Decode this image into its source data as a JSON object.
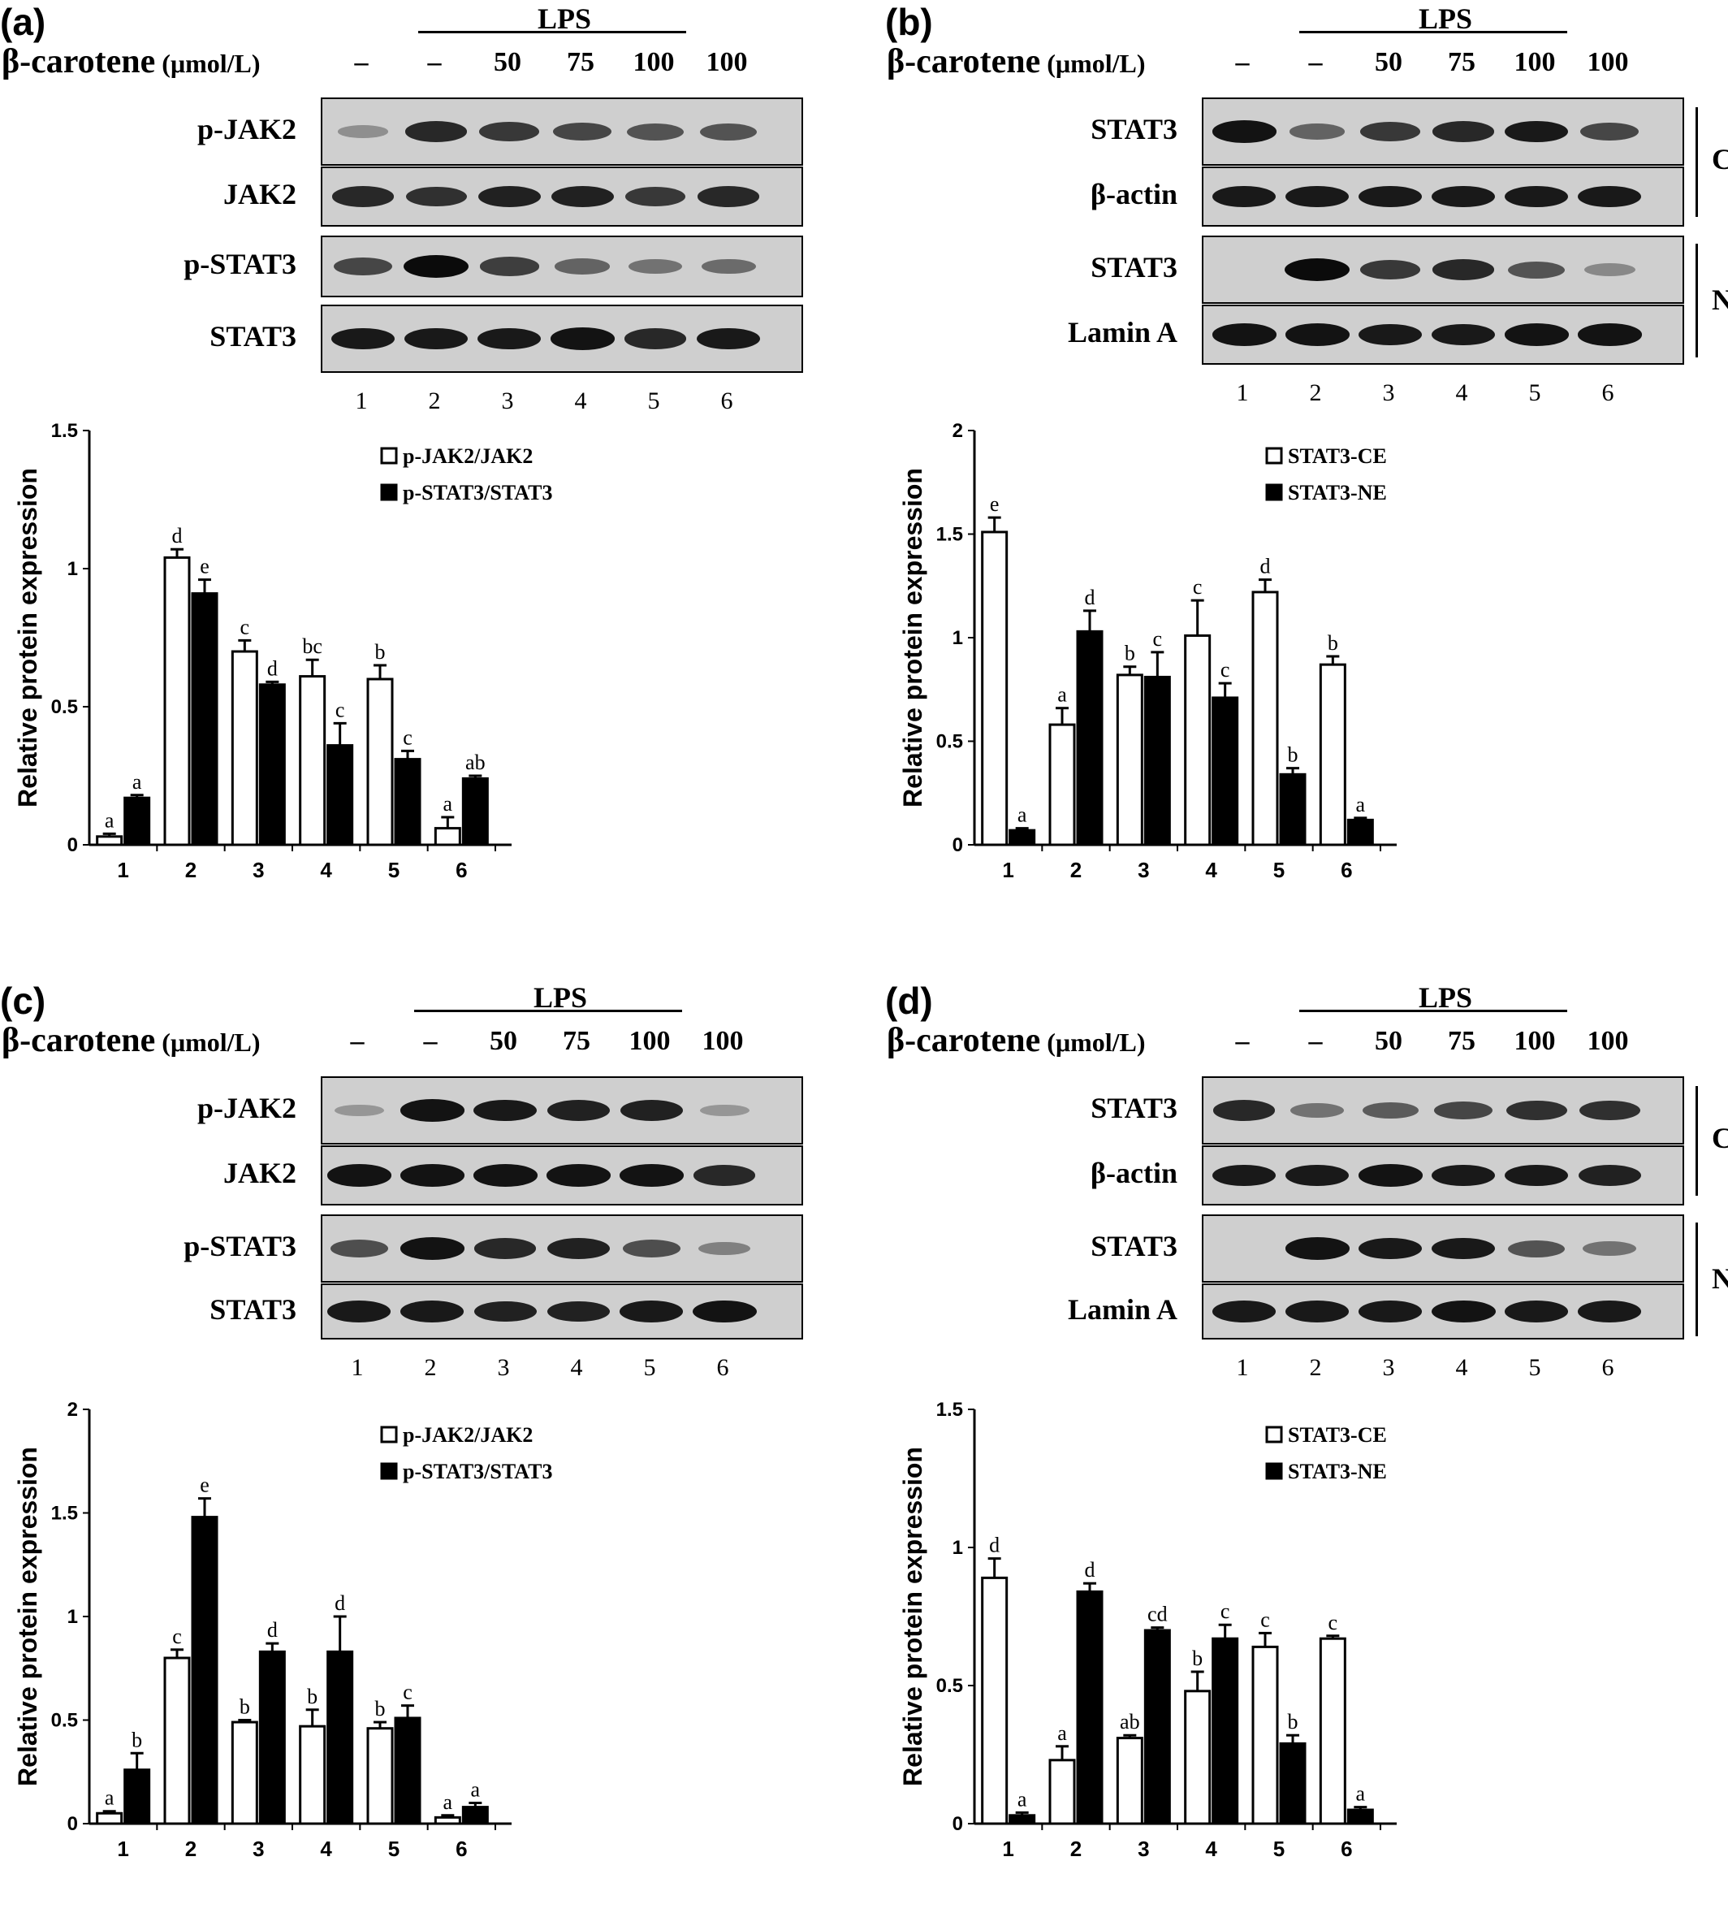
{
  "figure": {
    "lps_label": "LPS",
    "treatment_label": "β-carotene",
    "treatment_unit": "(μmol/L)",
    "doses": [
      "–",
      "–",
      "50",
      "75",
      "100",
      "100"
    ],
    "lanes": [
      "1",
      "2",
      "3",
      "4",
      "5",
      "6"
    ],
    "band_color": "#0b0b0b",
    "blot_background": "#cfcfcf"
  },
  "panels": [
    {
      "letter": "(a)",
      "blots": [
        {
          "name": "p-JAK2",
          "intensity": [
            0.1,
            0.8,
            0.7,
            0.6,
            0.5,
            0.5
          ]
        },
        {
          "name": "JAK2",
          "intensity": [
            0.8,
            0.75,
            0.85,
            0.85,
            0.7,
            0.8
          ]
        },
        {
          "name": "p-STAT3",
          "intensity": [
            0.6,
            1.0,
            0.65,
            0.4,
            0.3,
            0.35
          ]
        },
        {
          "name": "STAT3",
          "intensity": [
            0.9,
            0.9,
            0.9,
            0.95,
            0.8,
            0.9
          ]
        }
      ],
      "brackets": []
    },
    {
      "letter": "(b)",
      "blots": [
        {
          "name": "STAT3",
          "intensity": [
            0.95,
            0.4,
            0.7,
            0.8,
            0.9,
            0.6
          ]
        },
        {
          "name": "β-actin",
          "intensity": [
            0.9,
            0.9,
            0.9,
            0.9,
            0.9,
            0.9
          ]
        },
        {
          "name": "STAT3",
          "intensity": [
            0.0,
            1.0,
            0.7,
            0.8,
            0.5,
            0.15
          ]
        },
        {
          "name": "Lamin A",
          "intensity": [
            0.95,
            0.95,
            0.9,
            0.9,
            0.95,
            0.95
          ]
        }
      ],
      "brackets": [
        "CE",
        "NE"
      ]
    },
    {
      "letter": "(c)",
      "blots": [
        {
          "name": "p-JAK2",
          "intensity": [
            0.05,
            0.95,
            0.9,
            0.85,
            0.85,
            0.05
          ]
        },
        {
          "name": "JAK2",
          "intensity": [
            0.95,
            0.95,
            0.95,
            0.95,
            0.95,
            0.8
          ]
        },
        {
          "name": "p-STAT3",
          "intensity": [
            0.55,
            0.95,
            0.8,
            0.85,
            0.55,
            0.2
          ]
        },
        {
          "name": "STAT3",
          "intensity": [
            0.9,
            0.9,
            0.85,
            0.85,
            0.9,
            0.95
          ]
        }
      ],
      "brackets": []
    },
    {
      "letter": "(d)",
      "blots": [
        {
          "name": "STAT3",
          "intensity": [
            0.8,
            0.3,
            0.45,
            0.6,
            0.75,
            0.75
          ]
        },
        {
          "name": "β-actin",
          "intensity": [
            0.9,
            0.9,
            0.95,
            0.9,
            0.9,
            0.85
          ]
        },
        {
          "name": "STAT3",
          "intensity": [
            0.0,
            0.95,
            0.9,
            0.9,
            0.5,
            0.3
          ]
        },
        {
          "name": "Lamin A",
          "intensity": [
            0.9,
            0.9,
            0.9,
            0.95,
            0.9,
            0.9
          ]
        }
      ],
      "brackets": [
        "CE",
        "NE"
      ]
    }
  ],
  "chart_data": [
    {
      "type": "bar",
      "panel": "(a)",
      "categories": [
        "1",
        "2",
        "3",
        "4",
        "5",
        "6"
      ],
      "ylabel": "Relative protein  expression",
      "ylim": [
        0,
        1.5
      ],
      "yticks": [
        "0",
        "0.5",
        "1",
        "1.5"
      ],
      "legend_position": "top-right",
      "series": [
        {
          "name": "p-JAK2/JAK2",
          "fill": "#ffffff",
          "values": [
            0.03,
            1.04,
            0.7,
            0.61,
            0.6,
            0.06
          ],
          "errors": [
            0.01,
            0.03,
            0.04,
            0.06,
            0.05,
            0.04
          ],
          "letters": [
            "a",
            "d",
            "c",
            "bc",
            "b",
            "a"
          ]
        },
        {
          "name": "p-STAT3/STAT3",
          "fill": "#000000",
          "values": [
            0.17,
            0.91,
            0.58,
            0.36,
            0.31,
            0.24
          ],
          "errors": [
            0.01,
            0.05,
            0.01,
            0.08,
            0.03,
            0.01
          ],
          "letters": [
            "a",
            "e",
            "d",
            "c",
            "c",
            "ab"
          ]
        }
      ]
    },
    {
      "type": "bar",
      "panel": "(b)",
      "categories": [
        "1",
        "2",
        "3",
        "4",
        "5",
        "6"
      ],
      "ylabel": "Relative protein  expression",
      "ylim": [
        0,
        2
      ],
      "yticks": [
        "0",
        "0.5",
        "1",
        "1.5",
        "2"
      ],
      "legend_position": "top-right",
      "series": [
        {
          "name": "STAT3-CE",
          "fill": "#ffffff",
          "values": [
            1.51,
            0.58,
            0.82,
            1.01,
            1.22,
            0.87
          ],
          "errors": [
            0.07,
            0.08,
            0.04,
            0.17,
            0.06,
            0.04
          ],
          "letters": [
            "e",
            "a",
            "b",
            "c",
            "d",
            "b"
          ]
        },
        {
          "name": "STAT3-NE",
          "fill": "#000000",
          "values": [
            0.07,
            1.03,
            0.81,
            0.71,
            0.34,
            0.12
          ],
          "errors": [
            0.01,
            0.1,
            0.12,
            0.07,
            0.03,
            0.01
          ],
          "letters": [
            "a",
            "d",
            "c",
            "c",
            "b",
            "a"
          ]
        }
      ]
    },
    {
      "type": "bar",
      "panel": "(c)",
      "categories": [
        "1",
        "2",
        "3",
        "4",
        "5",
        "6"
      ],
      "ylabel": "Relative protein  expression",
      "ylim": [
        0,
        2
      ],
      "yticks": [
        "0",
        "0.5",
        "1",
        "1.5",
        "2"
      ],
      "legend_position": "top-right",
      "series": [
        {
          "name": "p-JAK2/JAK2",
          "fill": "#ffffff",
          "values": [
            0.05,
            0.8,
            0.49,
            0.47,
            0.46,
            0.03
          ],
          "errors": [
            0.01,
            0.04,
            0.01,
            0.08,
            0.03,
            0.01
          ],
          "letters": [
            "a",
            "c",
            "b",
            "b",
            "b",
            "a"
          ]
        },
        {
          "name": "p-STAT3/STAT3",
          "fill": "#000000",
          "values": [
            0.26,
            1.48,
            0.83,
            0.83,
            0.51,
            0.08
          ],
          "errors": [
            0.08,
            0.09,
            0.04,
            0.17,
            0.06,
            0.02
          ],
          "letters": [
            "b",
            "e",
            "d",
            "d",
            "c",
            "a"
          ]
        }
      ]
    },
    {
      "type": "bar",
      "panel": "(d)",
      "categories": [
        "1",
        "2",
        "3",
        "4",
        "5",
        "6"
      ],
      "ylabel": "Relative protein  expression",
      "ylim": [
        0,
        1.5
      ],
      "yticks": [
        "0",
        "0.5",
        "1",
        "1.5"
      ],
      "legend_position": "top-right",
      "series": [
        {
          "name": "STAT3-CE",
          "fill": "#ffffff",
          "values": [
            0.89,
            0.23,
            0.31,
            0.48,
            0.64,
            0.67
          ],
          "errors": [
            0.07,
            0.05,
            0.01,
            0.07,
            0.05,
            0.01
          ],
          "letters": [
            "d",
            "a",
            "ab",
            "b",
            "c",
            "c"
          ]
        },
        {
          "name": "STAT3-NE",
          "fill": "#000000",
          "values": [
            0.03,
            0.84,
            0.7,
            0.67,
            0.29,
            0.05
          ],
          "errors": [
            0.01,
            0.03,
            0.01,
            0.05,
            0.03,
            0.01
          ],
          "letters": [
            "a",
            "d",
            "cd",
            "c",
            "b",
            "a"
          ]
        }
      ]
    }
  ]
}
